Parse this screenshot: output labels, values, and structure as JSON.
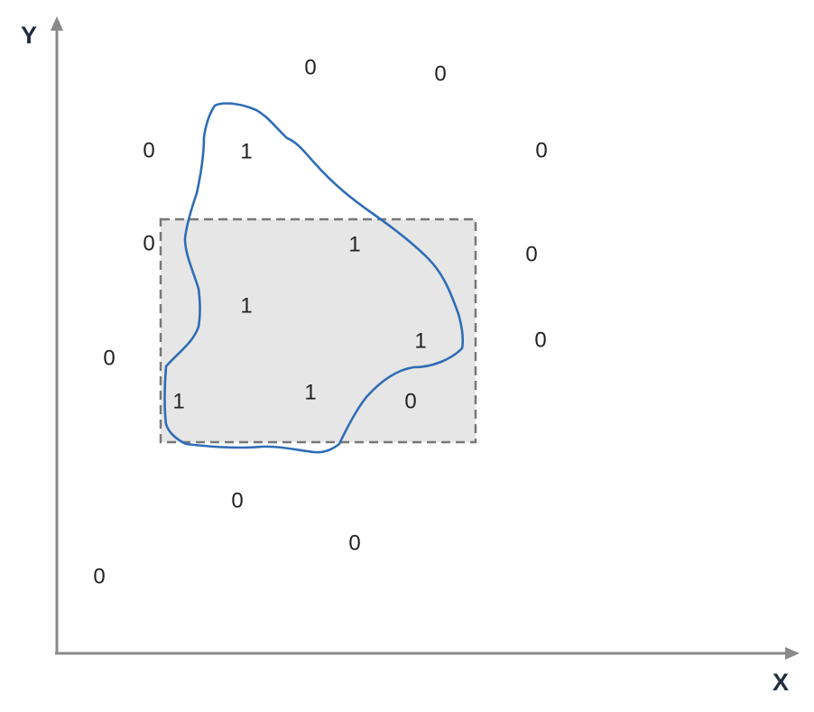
{
  "axes": {
    "x_label": "X",
    "y_label": "Y"
  },
  "colors": {
    "axis": "#8a8a8a",
    "region_fill": "#e6e6e6",
    "region_border": "#777777",
    "blob_stroke": "#2f6db5",
    "text": "#222222"
  },
  "points": [
    {
      "label": "0"
    },
    {
      "label": "0"
    },
    {
      "label": "0"
    },
    {
      "label": "1"
    },
    {
      "label": "0"
    },
    {
      "label": "0"
    },
    {
      "label": "1"
    },
    {
      "label": "0"
    },
    {
      "label": "1"
    },
    {
      "label": "0"
    },
    {
      "label": "1"
    },
    {
      "label": "0"
    },
    {
      "label": "1"
    },
    {
      "label": "1"
    },
    {
      "label": "0"
    },
    {
      "label": "0"
    },
    {
      "label": "0"
    },
    {
      "label": "0"
    }
  ]
}
